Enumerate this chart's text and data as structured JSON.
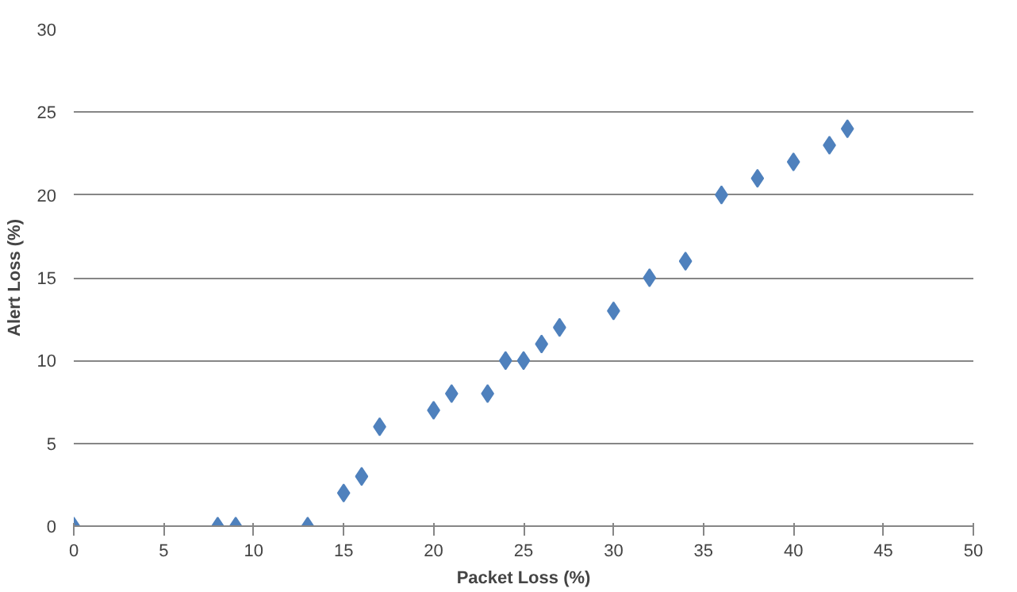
{
  "chart_data": {
    "type": "scatter",
    "xlabel": "Packet Loss (%)",
    "ylabel": "Alert Loss (%)",
    "x": [
      0,
      8,
      9,
      13,
      15,
      16,
      17,
      20,
      21,
      23,
      24,
      25,
      26,
      27,
      30,
      32,
      34,
      36,
      38,
      40,
      42,
      43
    ],
    "series": [
      {
        "color": "#4f81bd",
        "values": [
          0,
          0,
          0,
          0,
          2,
          3,
          6,
          7,
          8,
          8,
          10,
          10,
          11,
          12,
          13,
          15,
          16,
          20,
          21,
          22,
          23,
          24
        ]
      }
    ],
    "xlim": [
      0,
      50
    ],
    "xticks": [
      0,
      5,
      10,
      15,
      20,
      25,
      30,
      35,
      40,
      45,
      50
    ],
    "ylim": [
      0,
      30
    ],
    "yticks": [
      0,
      5,
      10,
      15,
      20,
      25,
      30
    ],
    "grid": "y",
    "marker": "diamond"
  }
}
